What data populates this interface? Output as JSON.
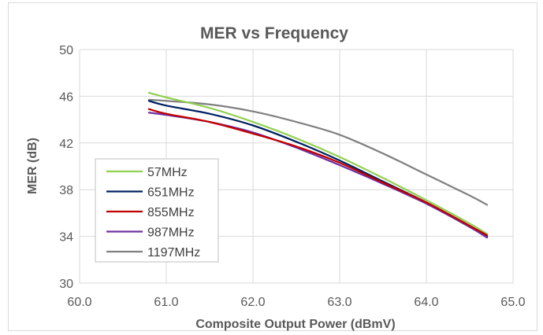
{
  "chart_data": {
    "type": "line",
    "title": "MER vs Frequency",
    "xlabel": "Composite Output Power (dBmV)",
    "ylabel": "MER (dB)",
    "xlim": [
      60.0,
      65.0
    ],
    "ylim": [
      30,
      50
    ],
    "x_ticks": [
      60.0,
      61.0,
      62.0,
      63.0,
      64.0,
      65.0
    ],
    "x_tick_labels": [
      "60.0",
      "61.0",
      "62.0",
      "63.0",
      "64.0",
      "65.0"
    ],
    "y_ticks": [
      30,
      34,
      38,
      42,
      46,
      50
    ],
    "y_tick_labels": [
      "30",
      "34",
      "38",
      "42",
      "46",
      "50"
    ],
    "grid": "vertical and horizontal major gridlines",
    "legend_position": "bottom-left inside plot",
    "series": [
      {
        "name": "57MHz",
        "color": "#92d050",
        "x": [
          60.8,
          61.0,
          61.5,
          62.0,
          62.5,
          63.0,
          63.5,
          64.0,
          64.5,
          64.7
        ],
        "y": [
          46.3,
          45.9,
          45.0,
          43.8,
          42.4,
          40.8,
          39.0,
          37.1,
          35.1,
          34.2
        ]
      },
      {
        "name": "651MHz",
        "color": "#002060",
        "x": [
          60.8,
          61.0,
          61.5,
          62.0,
          62.5,
          63.0,
          63.5,
          64.0,
          64.5,
          64.7
        ],
        "y": [
          45.6,
          45.2,
          44.5,
          43.5,
          42.1,
          40.5,
          38.7,
          36.9,
          34.9,
          34.0
        ]
      },
      {
        "name": "855MHz",
        "color": "#c00000",
        "x": [
          60.8,
          61.0,
          61.5,
          62.0,
          62.5,
          63.0,
          63.5,
          64.0,
          64.5,
          64.7
        ],
        "y": [
          44.9,
          44.5,
          43.8,
          42.8,
          41.7,
          40.3,
          38.6,
          36.9,
          34.9,
          34.1
        ]
      },
      {
        "name": "987MHz",
        "color": "#7030a0",
        "x": [
          60.8,
          61.0,
          61.5,
          62.0,
          62.5,
          63.0,
          63.5,
          64.0,
          64.5,
          64.7
        ],
        "y": [
          44.6,
          44.4,
          43.8,
          42.9,
          41.6,
          40.1,
          38.5,
          36.8,
          34.8,
          33.9
        ]
      },
      {
        "name": "1197MHz",
        "color": "#808080",
        "x": [
          60.8,
          61.0,
          61.5,
          62.0,
          62.5,
          63.0,
          63.5,
          64.0,
          64.5,
          64.7
        ],
        "y": [
          45.7,
          45.6,
          45.3,
          44.7,
          43.8,
          42.7,
          41.1,
          39.3,
          37.5,
          36.7
        ]
      }
    ]
  }
}
